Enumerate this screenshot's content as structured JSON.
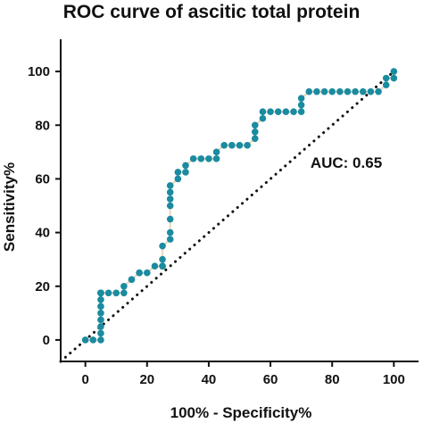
{
  "chart_data": {
    "type": "line",
    "title": "ROC curve of ascitic total protein",
    "xlabel": "100% - Specificity%",
    "ylabel": "Sensitivity%",
    "xlim": [
      -8,
      108
    ],
    "ylim": [
      -8,
      112
    ],
    "xticks": [
      0,
      20,
      40,
      60,
      80,
      100
    ],
    "yticks": [
      0,
      20,
      40,
      60,
      80,
      100
    ],
    "annotation": "AUC: 0.65",
    "colors": {
      "points": "#1a8ba0",
      "curve": "#e8d8b8",
      "reference": "#111111"
    },
    "reference_line": {
      "x": [
        0,
        100
      ],
      "y": [
        0,
        100
      ],
      "style": "dotted"
    },
    "series": [
      {
        "x": [
          0,
          2.5,
          5,
          5,
          5,
          5,
          5,
          5,
          5,
          5,
          5,
          5,
          5,
          5,
          7.5,
          10,
          12.5,
          12.5,
          15,
          15,
          17.5,
          17.5,
          20,
          22.5,
          25,
          25,
          25,
          25,
          25,
          27.5,
          27.5,
          27.5,
          27.5,
          27.5,
          27.5,
          27.5,
          30,
          30,
          32.5,
          32.5,
          35,
          37.5,
          40,
          42.5,
          42.5,
          45,
          47.5,
          50,
          52.5,
          55,
          55,
          55,
          57.5,
          57.5,
          60,
          62.5,
          65,
          67.5,
          70,
          70,
          70,
          72.5,
          75,
          77.5,
          80,
          82.5,
          85,
          87.5,
          90,
          92.5,
          95,
          97.5,
          97.5,
          100,
          100
        ],
        "y": [
          0,
          0,
          0,
          2.5,
          5,
          7.5,
          10,
          12.5,
          15,
          17.5,
          17.5,
          17.5,
          17.5,
          17.5,
          17.5,
          17.5,
          17.5,
          20,
          22.5,
          22.5,
          25,
          25,
          25,
          27.5,
          27.5,
          27.5,
          27.5,
          30,
          35,
          37.5,
          40,
          45,
          50,
          52.5,
          55,
          57.5,
          60,
          62.5,
          62.5,
          65,
          67.5,
          67.5,
          67.5,
          67.5,
          70,
          72.5,
          72.5,
          72.5,
          72.5,
          75,
          77.5,
          80,
          82.5,
          85,
          85,
          85,
          85,
          85,
          85,
          87.5,
          90,
          92.5,
          92.5,
          92.5,
          92.5,
          92.5,
          92.5,
          92.5,
          92.5,
          92.5,
          92.5,
          95,
          97.5,
          97.5,
          100
        ]
      }
    ]
  }
}
